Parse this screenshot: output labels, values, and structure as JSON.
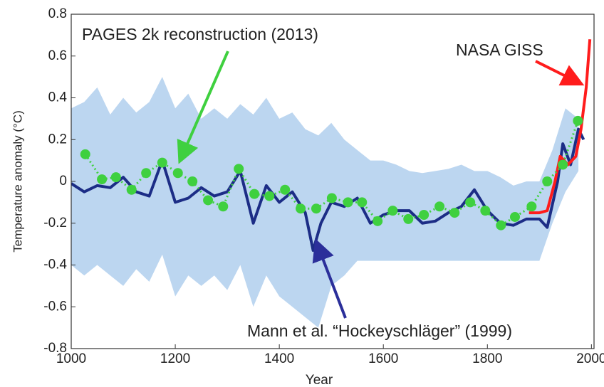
{
  "chart_data": {
    "type": "line",
    "xlabel": "Year",
    "ylabel": "Temperature anomaly (°C)",
    "xlim": [
      1000,
      2005
    ],
    "ylim": [
      -0.8,
      0.8
    ],
    "xticks": [
      1000,
      1200,
      1400,
      1600,
      1800,
      2000
    ],
    "yticks": [
      0.8,
      0.6,
      0.4,
      0.2,
      0,
      -0.2,
      -0.4,
      -0.6,
      -0.8
    ],
    "band": {
      "color": "#bcd6f0",
      "x": [
        1000,
        1025,
        1050,
        1075,
        1100,
        1125,
        1150,
        1175,
        1200,
        1225,
        1250,
        1275,
        1300,
        1325,
        1350,
        1375,
        1400,
        1425,
        1450,
        1475,
        1500,
        1525,
        1550,
        1575,
        1600,
        1625,
        1650,
        1675,
        1700,
        1725,
        1750,
        1775,
        1800,
        1825,
        1850,
        1875,
        1900,
        1925,
        1950,
        1975
      ],
      "upper": [
        0.35,
        0.38,
        0.45,
        0.32,
        0.4,
        0.33,
        0.38,
        0.5,
        0.35,
        0.42,
        0.3,
        0.35,
        0.3,
        0.37,
        0.32,
        0.4,
        0.3,
        0.33,
        0.25,
        0.22,
        0.28,
        0.2,
        0.15,
        0.1,
        0.1,
        0.08,
        0.05,
        0.04,
        0.05,
        0.06,
        0.08,
        0.05,
        0.05,
        0.02,
        -0.02,
        0.0,
        0.0,
        0.15,
        0.35,
        0.3
      ],
      "lower": [
        -0.4,
        -0.45,
        -0.4,
        -0.45,
        -0.5,
        -0.42,
        -0.48,
        -0.35,
        -0.55,
        -0.45,
        -0.5,
        -0.45,
        -0.52,
        -0.4,
        -0.6,
        -0.45,
        -0.55,
        -0.6,
        -0.65,
        -0.7,
        -0.5,
        -0.45,
        -0.38,
        -0.38,
        -0.38,
        -0.38,
        -0.38,
        -0.38,
        -0.38,
        -0.38,
        -0.38,
        -0.38,
        -0.38,
        -0.38,
        -0.38,
        -0.38,
        -0.38,
        -0.2,
        -0.05,
        0.05
      ]
    },
    "series": [
      {
        "color": "#1c2d86",
        "style": "line",
        "x": [
          1000,
          1025,
          1050,
          1075,
          1100,
          1125,
          1150,
          1175,
          1200,
          1225,
          1250,
          1275,
          1300,
          1325,
          1350,
          1375,
          1400,
          1425,
          1450,
          1465,
          1480,
          1500,
          1525,
          1550,
          1575,
          1600,
          1625,
          1650,
          1675,
          1700,
          1725,
          1750,
          1775,
          1800,
          1825,
          1850,
          1875,
          1900,
          1915,
          1935,
          1945,
          1960,
          1975,
          1985
        ],
        "values": [
          -0.01,
          -0.05,
          -0.02,
          -0.03,
          0.02,
          -0.05,
          -0.07,
          0.1,
          -0.1,
          -0.08,
          -0.03,
          -0.07,
          -0.05,
          0.05,
          -0.2,
          -0.02,
          -0.1,
          -0.05,
          -0.15,
          -0.33,
          -0.2,
          -0.1,
          -0.12,
          -0.08,
          -0.2,
          -0.16,
          -0.14,
          -0.14,
          -0.2,
          -0.19,
          -0.15,
          -0.12,
          -0.04,
          -0.14,
          -0.2,
          -0.21,
          -0.18,
          -0.18,
          -0.22,
          0.0,
          0.18,
          0.08,
          0.25,
          0.2
        ]
      },
      {
        "color": "#ff1c1c",
        "style": "line",
        "x": [
          1880,
          1900,
          1915,
          1930,
          1940,
          1955,
          1970,
          1980,
          1990,
          1997
        ],
        "values": [
          -0.15,
          -0.15,
          -0.14,
          0.0,
          0.12,
          0.08,
          0.12,
          0.25,
          0.45,
          0.68
        ]
      },
      {
        "color": "#3fd03f",
        "style": "dots",
        "x": [
          1027,
          1059,
          1086,
          1116,
          1144,
          1175,
          1205,
          1233,
          1263,
          1292,
          1322,
          1352,
          1381,
          1411,
          1441,
          1471,
          1501,
          1532,
          1559,
          1589,
          1618,
          1648,
          1678,
          1708,
          1737,
          1767,
          1796,
          1826,
          1853,
          1885,
          1915,
          1945,
          1974
        ],
        "values": [
          0.13,
          0.01,
          0.02,
          -0.04,
          0.04,
          0.09,
          0.04,
          0,
          -0.09,
          -0.12,
          0.06,
          -0.06,
          -0.07,
          -0.04,
          -0.13,
          -0.13,
          -0.08,
          -0.1,
          -0.1,
          -0.19,
          -0.14,
          -0.18,
          -0.16,
          -0.12,
          -0.15,
          -0.1,
          -0.14,
          -0.21,
          -0.17,
          -0.12,
          0,
          0.08,
          0.29
        ]
      }
    ],
    "annotations": [
      {
        "text": "PAGES 2k reconstruction (2013)",
        "color": "#3fd03f"
      },
      {
        "text": "NASA GISS",
        "color": "#ff1c1c"
      },
      {
        "text": "Mann et al. “Hockeyschläger” (1999)",
        "color": "#2b2f9a"
      }
    ]
  }
}
